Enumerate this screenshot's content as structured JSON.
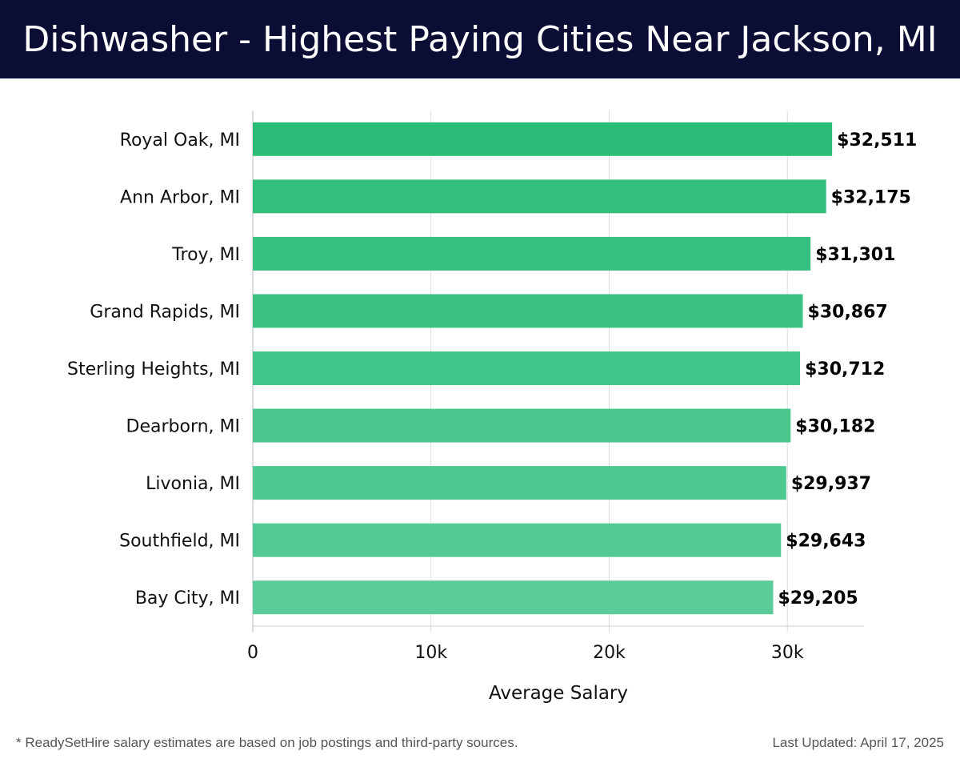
{
  "header": {
    "title": "Dishwasher - Highest Paying Cities Near Jackson, MI"
  },
  "chart_data": {
    "type": "bar",
    "orientation": "horizontal",
    "categories": [
      "Royal Oak, MI",
      "Ann Arbor, MI",
      "Troy, MI",
      "Grand Rapids, MI",
      "Sterling Heights, MI",
      "Dearborn, MI",
      "Livonia, MI",
      "Southfield, MI",
      "Bay City, MI"
    ],
    "values": [
      32511,
      32175,
      31301,
      30867,
      30712,
      30182,
      29937,
      29643,
      29205
    ],
    "value_labels": [
      "$32,511",
      "$32,175",
      "$31,301",
      "$30,867",
      "$30,712",
      "$30,182",
      "$29,937",
      "$29,643",
      "$29,205"
    ],
    "xlabel": "Average Salary",
    "xlim": [
      0,
      34300
    ],
    "xticks": [
      0,
      10000,
      20000,
      30000
    ],
    "xtick_labels": [
      "0",
      "10k",
      "20k",
      "30k"
    ],
    "grid": true,
    "bar_color_start": "#2bbd77",
    "bar_color_end": "#59cc99"
  },
  "footer": {
    "note": "* ReadySetHire salary estimates are based on job postings and third-party sources.",
    "updated": "Last Updated: April 17, 2025"
  }
}
